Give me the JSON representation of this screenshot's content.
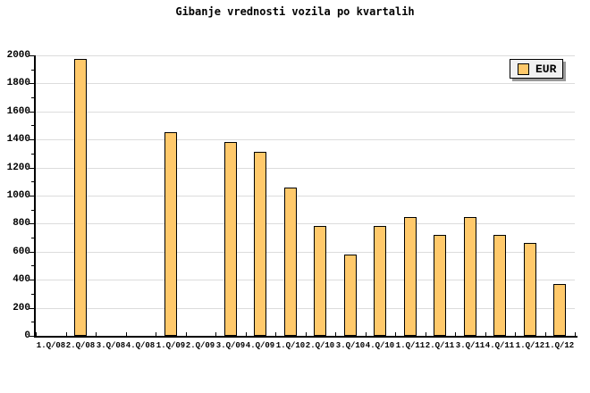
{
  "title": "Gibanje vrednosti vozila po kvartalih",
  "legend": {
    "label": "EUR"
  },
  "colors": {
    "bar_fill": "#FFC96B",
    "bar_border": "#000000",
    "gridline": "#DCDCDC",
    "axis": "#000000",
    "legend_bg": "#F1F1F1",
    "legend_shadow": "#999999",
    "background": "#FFFFFF"
  },
  "y_axis": {
    "tick_labels": [
      "0",
      "200",
      "400",
      "600",
      "800",
      "1000",
      "1200",
      "1400",
      "1600",
      "1800",
      "2000"
    ]
  },
  "chart_data": {
    "type": "bar",
    "title": "Gibanje vrednosti vozila po kvartalih",
    "categories": [
      "1.Q/08",
      "2.Q/08",
      "3.Q/08",
      "4.Q/08",
      "1.Q/09",
      "2.Q/09",
      "3.Q/09",
      "4.Q/09",
      "1.Q/10",
      "2.Q/10",
      "3.Q/10",
      "4.Q/10",
      "1.Q/11",
      "2.Q/11",
      "3.Q/11",
      "4.Q/11",
      "1.Q/12",
      "1.Q/12"
    ],
    "series": [
      {
        "name": "EUR",
        "values": [
          null,
          1975,
          null,
          null,
          1450,
          null,
          1380,
          1310,
          1055,
          785,
          580,
          785,
          850,
          720,
          850,
          720,
          660,
          370
        ]
      }
    ],
    "xlabel": "",
    "ylabel": "",
    "ylim": [
      0,
      2000
    ],
    "y_major_step": 200,
    "y_minor_step": 100,
    "grid": "horizontal-major-only",
    "legend_position": "top-right-inside"
  }
}
